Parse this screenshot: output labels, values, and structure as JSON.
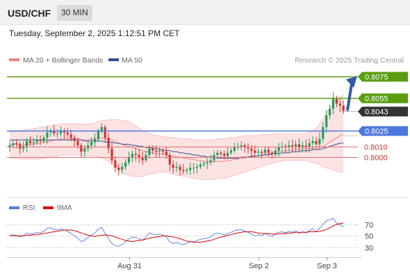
{
  "header": {
    "pair": "USD/CHF",
    "timeframe": "30 MIN",
    "datetime": "Tuesday, September 2, 2025 1:12:51 PM CET"
  },
  "legend": {
    "ma20": "MA 20 + Bollinger Bands",
    "ma50": "MA 50",
    "ma20_color": "#f08080",
    "ma50_color": "#2f4f8f",
    "credit": "Research © 2025 Trading Central"
  },
  "colors": {
    "resistance": "#5a9e10",
    "support": "#4c78dd",
    "pivot_red": "#e07070",
    "current": "#333333",
    "arrow": "#2d5e9e",
    "rsi": "#4f7fd8",
    "rsi_ma": "#e00000",
    "candle_up": "#1f9e5a",
    "candle_down": "#d53030",
    "band_fill": "#fbdede"
  },
  "chart_data": [
    {
      "type": "candlestick",
      "title": "",
      "x_ticks": [
        "Aug 31",
        "Sep 2",
        "Sep 3"
      ],
      "x_tick_index": [
        35,
        73,
        93
      ],
      "ylim": [
        0.7965,
        0.8085
      ],
      "current_price": 0.8043,
      "levels": [
        {
          "label": "0.8075",
          "value": 0.8075,
          "kind": "resistance"
        },
        {
          "label": "0.8055",
          "value": 0.8055,
          "kind": "resistance"
        },
        {
          "label": "0.8025",
          "value": 0.8025,
          "kind": "support"
        },
        {
          "label": "0.8010",
          "value": 0.801,
          "kind": "pivot"
        },
        {
          "label": "0.8000",
          "value": 0.8,
          "kind": "pivot"
        }
      ],
      "current_label": "0.8043",
      "forecast_arrow": {
        "from": 0.8043,
        "to": 0.8075
      },
      "close": [
        0.8011,
        0.8013,
        0.8012,
        0.8008,
        0.801,
        0.8015,
        0.8013,
        0.8014,
        0.8016,
        0.8015,
        0.8018,
        0.8023,
        0.8024,
        0.8022,
        0.8022,
        0.8024,
        0.8023,
        0.8021,
        0.8018,
        0.8015,
        0.8011,
        0.8005,
        0.8008,
        0.8011,
        0.8014,
        0.8017,
        0.8024,
        0.8028,
        0.8018,
        0.8008,
        0.7997,
        0.799,
        0.7988,
        0.7991,
        0.7995,
        0.8,
        0.8003,
        0.8002,
        0.8,
        0.7997,
        0.8002,
        0.8008,
        0.8006,
        0.8005,
        0.8006,
        0.8005,
        0.8002,
        0.7993,
        0.799,
        0.7991,
        0.7988,
        0.7987,
        0.7988,
        0.799,
        0.799,
        0.7991,
        0.7993,
        0.7994,
        0.7995,
        0.7997,
        0.8002,
        0.8004,
        0.8003,
        0.8001,
        0.8004,
        0.8006,
        0.8009,
        0.801,
        0.8011,
        0.8009,
        0.8008,
        0.8006,
        0.8004,
        0.8005,
        0.8004,
        0.8007,
        0.8004,
        0.8003,
        0.8006,
        0.8009,
        0.801,
        0.8009,
        0.8011,
        0.801,
        0.8012,
        0.8009,
        0.8011,
        0.801,
        0.8013,
        0.8015,
        0.8012,
        0.8017,
        0.8028,
        0.8039,
        0.8045,
        0.8055,
        0.805,
        0.8048,
        0.8043
      ],
      "ma20": [
        0.8011,
        0.8012,
        0.8012,
        0.8011,
        0.8011,
        0.8012,
        0.8012,
        0.8012,
        0.8013,
        0.8013,
        0.8014,
        0.8014,
        0.8015,
        0.8016,
        0.8016,
        0.8017,
        0.8017,
        0.8017,
        0.8017,
        0.8017,
        0.8017,
        0.8016,
        0.8016,
        0.8016,
        0.8017,
        0.8017,
        0.8017,
        0.8018,
        0.8017,
        0.8017,
        0.8016,
        0.8015,
        0.8013,
        0.8012,
        0.8011,
        0.801,
        0.8009,
        0.8008,
        0.8007,
        0.8006,
        0.8005,
        0.8005,
        0.8004,
        0.8003,
        0.8003,
        0.8003,
        0.8002,
        0.8001,
        0.8001,
        0.8,
        0.8,
        0.7999,
        0.7999,
        0.7998,
        0.7998,
        0.7997,
        0.7997,
        0.7996,
        0.7996,
        0.7996,
        0.7996,
        0.7996,
        0.7996,
        0.7996,
        0.7997,
        0.7997,
        0.7998,
        0.7998,
        0.7999,
        0.7999,
        0.8,
        0.8,
        0.8001,
        0.8001,
        0.8002,
        0.8003,
        0.8003,
        0.8004,
        0.8004,
        0.8005,
        0.8005,
        0.8006,
        0.8006,
        0.8007,
        0.8007,
        0.8007,
        0.8008,
        0.8008,
        0.8008,
        0.8008,
        0.8008,
        0.8009,
        0.801,
        0.8012,
        0.8014,
        0.8016,
        0.8018,
        0.802,
        0.8021
      ],
      "ma50": [
        0.8016,
        0.8016,
        0.8016,
        0.8016,
        0.8016,
        0.8016,
        0.8016,
        0.8016,
        0.8016,
        0.8016,
        0.8016,
        0.8016,
        0.8016,
        0.8016,
        0.8016,
        0.8016,
        0.8016,
        0.8016,
        0.8016,
        0.8016,
        0.8016,
        0.8016,
        0.8015,
        0.8015,
        0.8015,
        0.8015,
        0.8015,
        0.8015,
        0.8014,
        0.8014,
        0.8014,
        0.8013,
        0.8013,
        0.8012,
        0.8012,
        0.8012,
        0.8011,
        0.8011,
        0.801,
        0.801,
        0.8009,
        0.8009,
        0.8008,
        0.8008,
        0.8007,
        0.8007,
        0.8006,
        0.8006,
        0.8005,
        0.8005,
        0.8004,
        0.8004,
        0.8003,
        0.8003,
        0.8002,
        0.8002,
        0.8001,
        0.8001,
        0.8,
        0.8,
        0.8,
        0.7999,
        0.7999,
        0.7999,
        0.7999,
        0.7999,
        0.7999,
        0.7999,
        0.8,
        0.8,
        0.8,
        0.8001,
        0.8001,
        0.8001,
        0.8002,
        0.8002,
        0.8002,
        0.8003,
        0.8003,
        0.8003,
        0.8004,
        0.8004,
        0.8004,
        0.8005,
        0.8005,
        0.8005,
        0.8006,
        0.8006,
        0.8006,
        0.8007,
        0.8007,
        0.8007,
        0.8008,
        0.8009,
        0.801,
        0.8011,
        0.8012,
        0.8013,
        0.8013
      ],
      "bb_upper": [
        0.8023,
        0.8024,
        0.8024,
        0.8024,
        0.8025,
        0.8026,
        0.8026,
        0.8027,
        0.8027,
        0.8028,
        0.8028,
        0.8029,
        0.8029,
        0.803,
        0.803,
        0.8031,
        0.8031,
        0.8031,
        0.8031,
        0.8031,
        0.8031,
        0.8031,
        0.803,
        0.8031,
        0.8031,
        0.8032,
        0.8033,
        0.8034,
        0.8034,
        0.8035,
        0.8035,
        0.8035,
        0.8035,
        0.8034,
        0.8034,
        0.8033,
        0.8031,
        0.8029,
        0.8027,
        0.8025,
        0.8023,
        0.8022,
        0.8021,
        0.802,
        0.802,
        0.8019,
        0.8019,
        0.8018,
        0.8018,
        0.8018,
        0.8017,
        0.8017,
        0.8017,
        0.8017,
        0.8016,
        0.8016,
        0.8016,
        0.8016,
        0.8016,
        0.8016,
        0.8016,
        0.8017,
        0.8017,
        0.8017,
        0.8018,
        0.8018,
        0.8018,
        0.8019,
        0.8019,
        0.802,
        0.802,
        0.802,
        0.802,
        0.802,
        0.8021,
        0.8021,
        0.8021,
        0.8021,
        0.8022,
        0.8022,
        0.8022,
        0.8022,
        0.8022,
        0.8022,
        0.8022,
        0.8022,
        0.8022,
        0.8022,
        0.8023,
        0.8024,
        0.8027,
        0.8031,
        0.8036,
        0.8041,
        0.8046,
        0.805,
        0.8054,
        0.8056,
        0.8058
      ],
      "bb_lower": [
        0.7999,
        0.7999,
        0.7999,
        0.7998,
        0.7998,
        0.7998,
        0.7998,
        0.7998,
        0.7998,
        0.7998,
        0.7999,
        0.7999,
        0.8,
        0.8,
        0.8001,
        0.8002,
        0.8002,
        0.8002,
        0.8002,
        0.8002,
        0.8002,
        0.8002,
        0.8001,
        0.8001,
        0.8001,
        0.8001,
        0.8,
        0.7999,
        0.7998,
        0.7996,
        0.7993,
        0.7991,
        0.7988,
        0.7986,
        0.7984,
        0.7983,
        0.7982,
        0.7982,
        0.7982,
        0.7982,
        0.7983,
        0.7984,
        0.7985,
        0.7985,
        0.7986,
        0.7986,
        0.7986,
        0.7985,
        0.7984,
        0.7983,
        0.7983,
        0.7982,
        0.7982,
        0.7981,
        0.798,
        0.798,
        0.7979,
        0.7979,
        0.7979,
        0.7979,
        0.7979,
        0.798,
        0.798,
        0.798,
        0.7981,
        0.7982,
        0.7983,
        0.7984,
        0.7985,
        0.7986,
        0.7987,
        0.7988,
        0.7989,
        0.799,
        0.7991,
        0.7992,
        0.7993,
        0.7994,
        0.7995,
        0.7996,
        0.7996,
        0.7997,
        0.7997,
        0.7997,
        0.7997,
        0.7997,
        0.7997,
        0.7997,
        0.7996,
        0.7995,
        0.7994,
        0.7993,
        0.7991,
        0.799,
        0.7989,
        0.7988,
        0.7987,
        0.7986,
        0.7986
      ]
    },
    {
      "type": "line",
      "title": "",
      "legend": [
        "RSI",
        "9MA"
      ],
      "y_ticks": [
        "70",
        "50",
        "30"
      ],
      "y_tick_values": [
        70,
        50,
        30
      ],
      "ylim": [
        18,
        90
      ],
      "rsi": [
        50,
        52,
        51,
        48,
        50,
        55,
        53,
        54,
        56,
        55,
        58,
        63,
        64,
        61,
        60,
        62,
        60,
        58,
        54,
        50,
        46,
        40,
        43,
        47,
        51,
        55,
        61,
        65,
        54,
        45,
        37,
        33,
        32,
        35,
        40,
        45,
        48,
        47,
        45,
        42,
        48,
        55,
        53,
        52,
        53,
        51,
        48,
        40,
        37,
        39,
        36,
        35,
        37,
        40,
        40,
        42,
        44,
        45,
        46,
        48,
        53,
        55,
        54,
        51,
        54,
        56,
        59,
        60,
        61,
        58,
        56,
        53,
        50,
        52,
        50,
        54,
        51,
        49,
        53,
        56,
        57,
        55,
        58,
        56,
        59,
        54,
        57,
        55,
        59,
        62,
        57,
        63,
        70,
        76,
        78,
        80,
        72,
        69,
        65
      ],
      "rsi_ma": [
        50,
        50,
        50,
        50,
        50,
        51,
        51,
        52,
        52,
        53,
        54,
        55,
        56,
        57,
        58,
        59,
        60,
        60,
        60,
        59,
        57,
        55,
        53,
        51,
        50,
        49,
        50,
        51,
        52,
        51,
        50,
        48,
        46,
        44,
        42,
        41,
        40,
        41,
        42,
        43,
        44,
        46,
        47,
        48,
        49,
        50,
        50,
        49,
        48,
        47,
        45,
        43,
        41,
        40,
        39,
        39,
        39,
        40,
        41,
        42,
        44,
        46,
        48,
        49,
        51,
        52,
        54,
        55,
        56,
        57,
        57,
        57,
        56,
        55,
        54,
        54,
        54,
        53,
        53,
        53,
        54,
        54,
        55,
        55,
        56,
        56,
        56,
        56,
        57,
        57,
        57,
        58,
        59,
        61,
        64,
        67,
        70,
        71,
        72
      ]
    }
  ]
}
